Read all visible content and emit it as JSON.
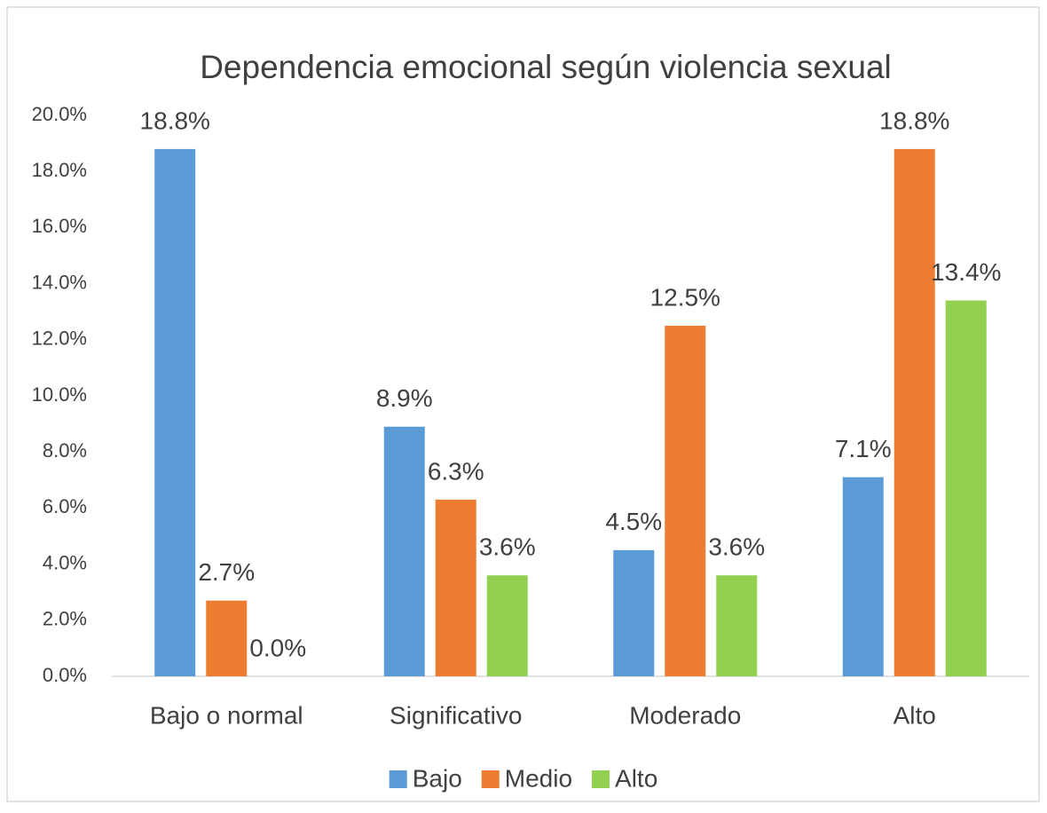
{
  "chart_data": {
    "type": "bar",
    "title": "Dependencia emocional según violencia sexual",
    "categories": [
      "Bajo o normal",
      "Significativo",
      "Moderado",
      "Alto"
    ],
    "series": [
      {
        "name": "Bajo",
        "color": "#5b9bd5",
        "values": [
          18.8,
          8.9,
          4.5,
          7.1
        ],
        "value_labels": [
          "18.8%",
          "8.9%",
          "4.5%",
          "7.1%"
        ]
      },
      {
        "name": "Medio",
        "color": "#ed7d31",
        "values": [
          2.7,
          6.3,
          12.5,
          18.8
        ],
        "value_labels": [
          "2.7%",
          "6.3%",
          "12.5%",
          "18.8%"
        ]
      },
      {
        "name": "Alto",
        "color": "#92d050",
        "values": [
          0.0,
          3.6,
          3.6,
          13.4
        ],
        "value_labels": [
          "0.0%",
          "3.6%",
          "3.6%",
          "13.4%"
        ]
      }
    ],
    "ylim": [
      0,
      20
    ],
    "yticks": [
      {
        "value": 0,
        "label": "0.0%"
      },
      {
        "value": 2,
        "label": "2.0%"
      },
      {
        "value": 4,
        "label": "4.0%"
      },
      {
        "value": 6,
        "label": "6.0%"
      },
      {
        "value": 8,
        "label": "8.0%"
      },
      {
        "value": 10,
        "label": "10.0%"
      },
      {
        "value": 12,
        "label": "12.0%"
      },
      {
        "value": 14,
        "label": "14.0%"
      },
      {
        "value": 16,
        "label": "16.0%"
      },
      {
        "value": 18,
        "label": "18.0%"
      },
      {
        "value": 20,
        "label": "20.0%"
      }
    ],
    "grid": false,
    "legend": "bottom"
  }
}
